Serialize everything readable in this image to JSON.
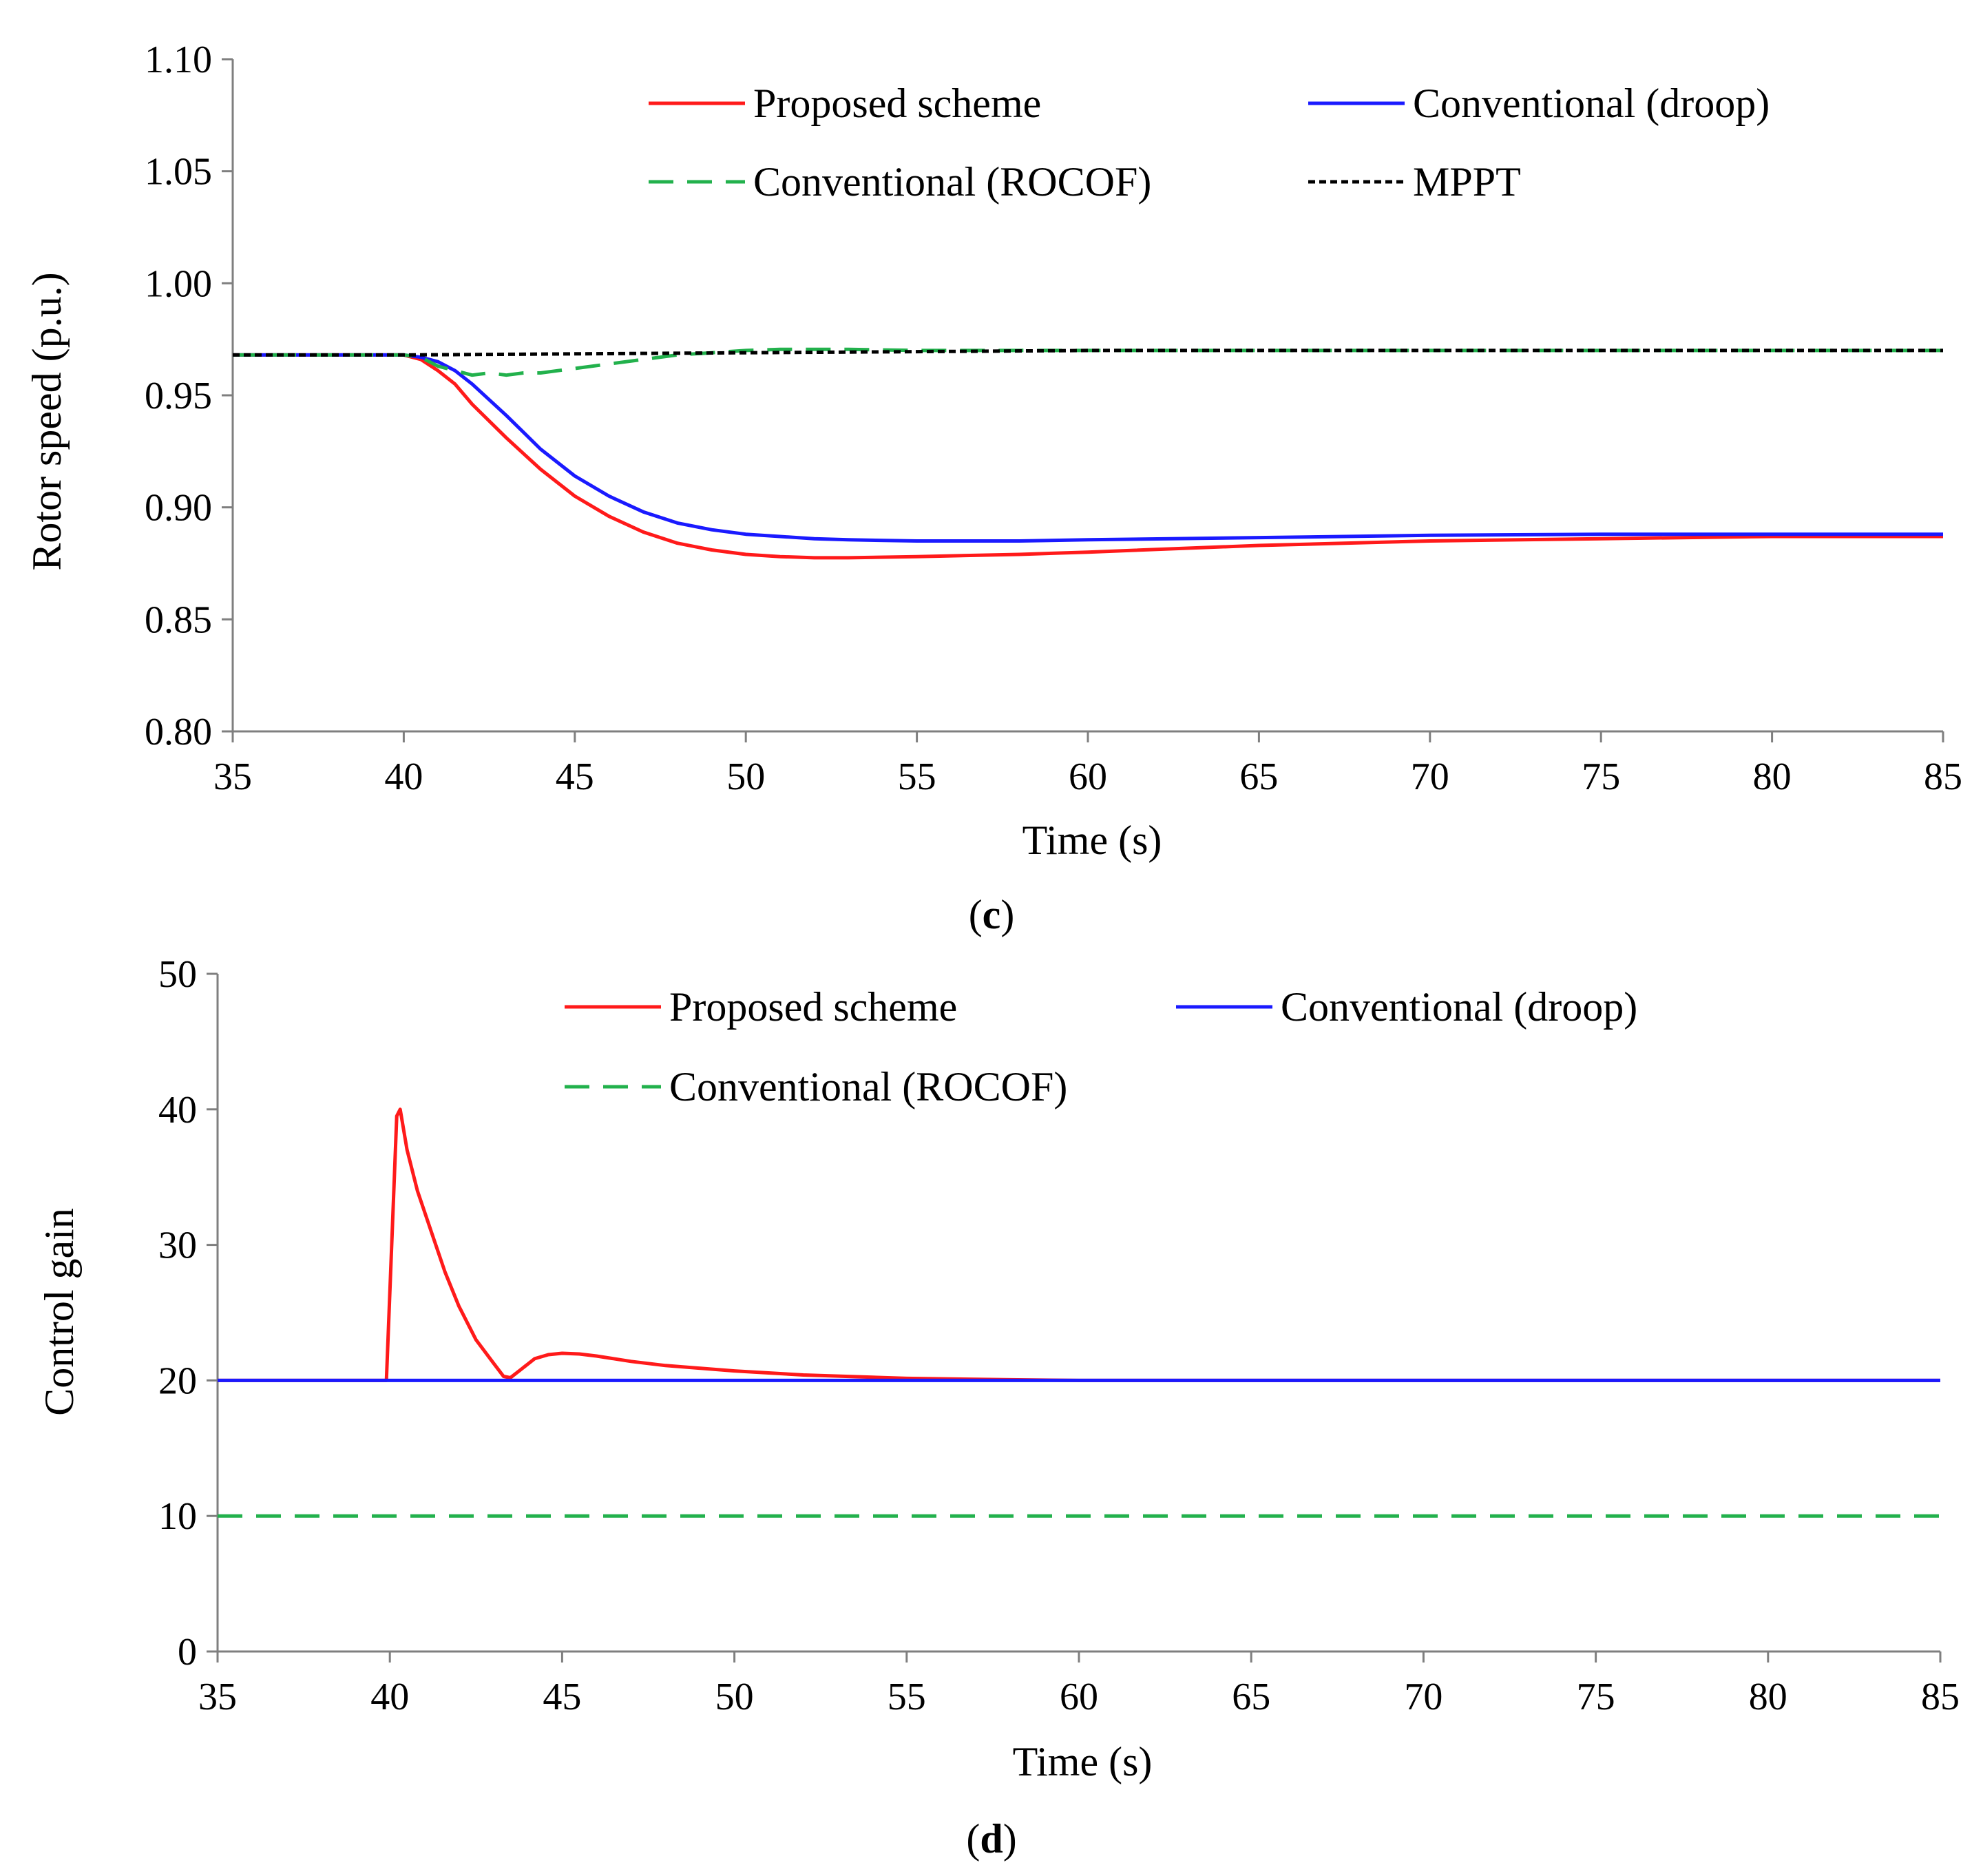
{
  "chart_data": [
    {
      "id": "c",
      "type": "line",
      "caption": "(c)",
      "caption_letter": "c",
      "xlabel": "Time (s)",
      "ylabel": "Rotor speed (p.u.)",
      "xlim": [
        35,
        85
      ],
      "ylim": [
        0.8,
        1.1
      ],
      "xticks": [
        35,
        40,
        45,
        50,
        55,
        60,
        65,
        70,
        75,
        80,
        85
      ],
      "yticks": [
        "0.80",
        "0.85",
        "0.90",
        "0.95",
        "1.00",
        "1.05",
        "1.10"
      ],
      "grid": false,
      "legend_position": "top",
      "series": [
        {
          "name": "Proposed scheme",
          "color": "#ff1a1a",
          "style": "solid",
          "x": [
            35,
            40,
            40.5,
            41,
            41.5,
            42,
            43,
            44,
            45,
            46,
            47,
            48,
            49,
            50,
            51,
            52,
            53,
            55,
            58,
            60,
            65,
            70,
            75,
            80,
            85
          ],
          "y": [
            0.968,
            0.968,
            0.966,
            0.961,
            0.955,
            0.946,
            0.931,
            0.917,
            0.905,
            0.896,
            0.889,
            0.884,
            0.881,
            0.879,
            0.878,
            0.8775,
            0.8775,
            0.878,
            0.879,
            0.88,
            0.883,
            0.885,
            0.886,
            0.887,
            0.887
          ]
        },
        {
          "name": "Conventional (droop)",
          "color": "#1a1aff",
          "style": "solid",
          "x": [
            35,
            40,
            40.5,
            41,
            41.5,
            42,
            43,
            44,
            45,
            46,
            47,
            48,
            49,
            50,
            51,
            52,
            53,
            55,
            58,
            60,
            65,
            70,
            75,
            80,
            85
          ],
          "y": [
            0.968,
            0.968,
            0.967,
            0.965,
            0.961,
            0.955,
            0.941,
            0.926,
            0.914,
            0.905,
            0.898,
            0.893,
            0.89,
            0.888,
            0.887,
            0.886,
            0.8855,
            0.885,
            0.885,
            0.8855,
            0.8865,
            0.8875,
            0.888,
            0.888,
            0.888
          ]
        },
        {
          "name": "Conventional (ROCOF)",
          "color": "#22b14c",
          "style": "dashed",
          "x": [
            35,
            40,
            40.5,
            41,
            41.5,
            42,
            42.5,
            43,
            43.5,
            44,
            45,
            46,
            47,
            48,
            49,
            50,
            51,
            52,
            53,
            55,
            60,
            65,
            70,
            75,
            80,
            85
          ],
          "y": [
            0.968,
            0.968,
            0.967,
            0.963,
            0.961,
            0.959,
            0.96,
            0.959,
            0.96,
            0.96,
            0.962,
            0.964,
            0.966,
            0.968,
            0.969,
            0.97,
            0.9705,
            0.9705,
            0.9705,
            0.97,
            0.97,
            0.97,
            0.97,
            0.97,
            0.97,
            0.97
          ]
        },
        {
          "name": "MPPT",
          "color": "#000000",
          "style": "dotted",
          "x": [
            35,
            40,
            45,
            50,
            55,
            60,
            65,
            70,
            75,
            80,
            85
          ],
          "y": [
            0.968,
            0.968,
            0.9685,
            0.969,
            0.9695,
            0.97,
            0.97,
            0.97,
            0.97,
            0.97,
            0.97
          ]
        }
      ]
    },
    {
      "id": "d",
      "type": "line",
      "caption": "(d)",
      "caption_letter": "d",
      "xlabel": "Time (s)",
      "ylabel": "Control gain",
      "xlim": [
        35,
        85
      ],
      "ylim": [
        0,
        50
      ],
      "xticks": [
        35,
        40,
        45,
        50,
        55,
        60,
        65,
        70,
        75,
        80,
        85
      ],
      "yticks": [
        "0",
        "10",
        "20",
        "30",
        "40",
        "50"
      ],
      "grid": false,
      "legend_position": "top",
      "series": [
        {
          "name": "Proposed scheme",
          "color": "#ff1a1a",
          "style": "solid",
          "x": [
            35,
            39.9,
            40.2,
            40.3,
            40.5,
            40.8,
            41.2,
            41.6,
            42.0,
            42.5,
            43.0,
            43.3,
            43.5,
            43.8,
            44.2,
            44.6,
            45.0,
            45.5,
            46,
            47,
            48,
            50,
            52,
            55,
            58,
            60,
            85
          ],
          "y": [
            20,
            20,
            39.5,
            40,
            37,
            34,
            31,
            28,
            25.5,
            23,
            21.3,
            20.3,
            20.2,
            20.8,
            21.6,
            21.9,
            22.0,
            21.95,
            21.8,
            21.4,
            21.1,
            20.7,
            20.4,
            20.15,
            20.05,
            20,
            20
          ]
        },
        {
          "name": "Conventional (droop)",
          "color": "#1a1aff",
          "style": "solid",
          "x": [
            35,
            85
          ],
          "y": [
            20,
            20
          ]
        },
        {
          "name": "Conventional (ROCOF)",
          "color": "#22b14c",
          "style": "dashed",
          "x": [
            35,
            85
          ],
          "y": [
            10,
            10
          ]
        }
      ]
    }
  ]
}
